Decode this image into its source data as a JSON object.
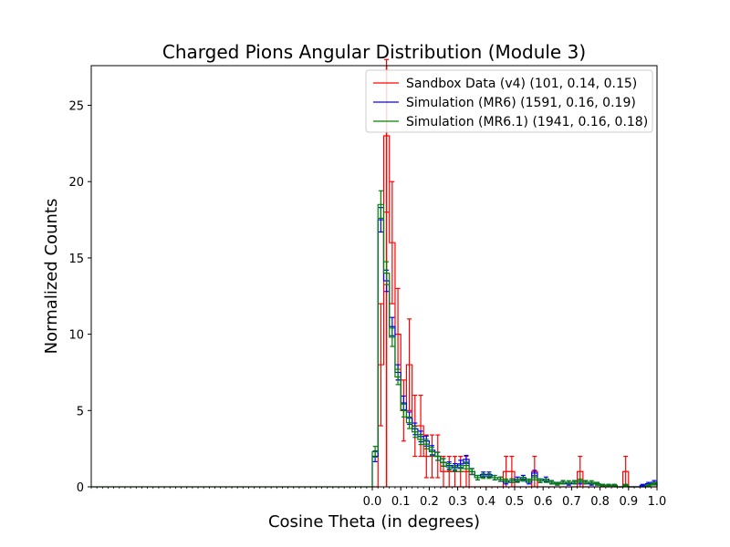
{
  "chart_data": {
    "type": "histogram-step",
    "title": "Charged Pions Angular Distribution (Module 3)",
    "xlabel": "Cosine Theta (in degrees)",
    "ylabel": "Normalized Counts",
    "xlim": [
      -1.0,
      1.0
    ],
    "ylim": [
      0,
      27.6
    ],
    "xticks": [
      0.0,
      0.1,
      0.2,
      0.3,
      0.4,
      0.5,
      0.6,
      0.7,
      0.8,
      0.9,
      1.0
    ],
    "xtick_labels": [
      "0.0",
      "0.1",
      "0.2",
      "0.3",
      "0.4",
      "0.5",
      "0.6",
      "0.7",
      "0.8",
      "0.9",
      "1.0"
    ],
    "yticks": [
      0,
      5,
      10,
      15,
      20,
      25
    ],
    "ytick_labels": [
      "0",
      "5",
      "10",
      "15",
      "20",
      "25"
    ],
    "minor_xtick_step": 0.02,
    "vline_x": 0.05,
    "vline_color": "#ff0000",
    "legend_position": "upper-right",
    "bin_width": 0.02,
    "series": [
      {
        "name": "Sandbox Data (v4) (101, 0.14, 0.15)",
        "color": "#ff0000",
        "x": [
          0.01,
          0.03,
          0.05,
          0.07,
          0.09,
          0.11,
          0.13,
          0.15,
          0.17,
          0.19,
          0.21,
          0.23,
          0.25,
          0.27,
          0.29,
          0.31,
          0.33,
          0.35,
          0.37,
          0.39,
          0.41,
          0.43,
          0.45,
          0.47,
          0.49,
          0.51,
          0.53,
          0.55,
          0.57,
          0.59,
          0.61,
          0.63,
          0.65,
          0.67,
          0.69,
          0.71,
          0.73,
          0.75,
          0.77,
          0.79,
          0.81,
          0.83,
          0.85,
          0.87,
          0.89,
          0.91,
          0.93,
          0.95,
          0.97,
          0.99
        ],
        "values": [
          0,
          8,
          23,
          16,
          10,
          5,
          8,
          4,
          4,
          2,
          2,
          2,
          1,
          1,
          1,
          1,
          1,
          0,
          0,
          0,
          0,
          0,
          0,
          1,
          1,
          0,
          0,
          0,
          1,
          0,
          0,
          0,
          0,
          0,
          0,
          0,
          1,
          0,
          0,
          0,
          0,
          0,
          0,
          0,
          1,
          0,
          0,
          0,
          0,
          0
        ],
        "errors": [
          0,
          4,
          5,
          4,
          3,
          2,
          3,
          2,
          2,
          1.4,
          1.4,
          1.4,
          1,
          1,
          1,
          1,
          1,
          0,
          0,
          0,
          0,
          0,
          0,
          1,
          1,
          0,
          0,
          0,
          1,
          0,
          0,
          0,
          0,
          0,
          0,
          0,
          1,
          0,
          0,
          0,
          0,
          0,
          0,
          0,
          1,
          0,
          0,
          0,
          0,
          0
        ]
      },
      {
        "name": "Simulation (MR6) (1591, 0.16, 0.19)",
        "color": "#0000ff",
        "x": [
          0.01,
          0.03,
          0.05,
          0.07,
          0.09,
          0.11,
          0.13,
          0.15,
          0.17,
          0.19,
          0.21,
          0.23,
          0.25,
          0.27,
          0.29,
          0.31,
          0.33,
          0.35,
          0.37,
          0.39,
          0.41,
          0.43,
          0.45,
          0.47,
          0.49,
          0.51,
          0.53,
          0.55,
          0.57,
          0.59,
          0.61,
          0.63,
          0.65,
          0.67,
          0.69,
          0.71,
          0.73,
          0.75,
          0.77,
          0.79,
          0.81,
          0.83,
          0.85,
          0.87,
          0.89,
          0.91,
          0.93,
          0.95,
          0.97,
          0.99
        ],
        "values": [
          2.0,
          17.5,
          13.5,
          10.5,
          7.5,
          5.5,
          4.5,
          3.8,
          3.3,
          3.0,
          2.4,
          2.0,
          1.6,
          1.4,
          1.3,
          1.5,
          1.8,
          1.0,
          0.6,
          0.8,
          0.8,
          0.6,
          0.5,
          0.3,
          0.4,
          0.5,
          0.6,
          0.3,
          0.9,
          0.4,
          0.5,
          0.3,
          0.2,
          0.3,
          0.2,
          0.3,
          0.3,
          0.3,
          0.2,
          0.2,
          0.1,
          0.1,
          0.1,
          0.0,
          0.1,
          0.0,
          0.0,
          0.1,
          0.2,
          0.3
        ],
        "errors": [
          0.35,
          0.8,
          0.7,
          0.6,
          0.5,
          0.45,
          0.4,
          0.38,
          0.35,
          0.33,
          0.3,
          0.27,
          0.25,
          0.23,
          0.22,
          0.24,
          0.26,
          0.2,
          0.15,
          0.17,
          0.17,
          0.15,
          0.14,
          0.11,
          0.12,
          0.14,
          0.15,
          0.11,
          0.18,
          0.12,
          0.14,
          0.11,
          0.09,
          0.11,
          0.09,
          0.11,
          0.11,
          0.11,
          0.09,
          0.09,
          0.06,
          0.06,
          0.06,
          0.0,
          0.06,
          0.0,
          0.0,
          0.06,
          0.09,
          0.11
        ]
      },
      {
        "name": "Simulation (MR6.1) (1941, 0.16, 0.18)",
        "color": "#008000",
        "x": [
          0.01,
          0.03,
          0.05,
          0.07,
          0.09,
          0.11,
          0.13,
          0.15,
          0.17,
          0.19,
          0.21,
          0.23,
          0.25,
          0.27,
          0.29,
          0.31,
          0.33,
          0.35,
          0.37,
          0.39,
          0.41,
          0.43,
          0.45,
          0.47,
          0.49,
          0.51,
          0.53,
          0.55,
          0.57,
          0.59,
          0.61,
          0.63,
          0.65,
          0.67,
          0.69,
          0.71,
          0.73,
          0.75,
          0.77,
          0.79,
          0.81,
          0.83,
          0.85,
          0.87,
          0.89,
          0.91,
          0.93,
          0.95,
          0.97,
          0.99
        ],
        "values": [
          2.3,
          18.5,
          14.0,
          9.8,
          7.2,
          5.0,
          4.2,
          3.6,
          3.1,
          2.8,
          2.3,
          2.0,
          1.6,
          1.3,
          1.2,
          1.2,
          1.4,
          1.0,
          0.6,
          0.7,
          0.7,
          0.6,
          0.5,
          0.4,
          0.4,
          0.4,
          0.5,
          0.4,
          0.6,
          0.4,
          0.4,
          0.3,
          0.2,
          0.3,
          0.3,
          0.3,
          0.4,
          0.3,
          0.3,
          0.2,
          0.1,
          0.1,
          0.1,
          0.0,
          0.1,
          0.0,
          0.0,
          0.0,
          0.1,
          0.2
        ],
        "errors": [
          0.35,
          0.9,
          0.75,
          0.6,
          0.5,
          0.42,
          0.38,
          0.36,
          0.33,
          0.31,
          0.28,
          0.26,
          0.24,
          0.22,
          0.2,
          0.2,
          0.22,
          0.18,
          0.14,
          0.15,
          0.15,
          0.14,
          0.13,
          0.11,
          0.11,
          0.11,
          0.13,
          0.11,
          0.14,
          0.11,
          0.11,
          0.1,
          0.08,
          0.1,
          0.1,
          0.1,
          0.11,
          0.1,
          0.1,
          0.08,
          0.06,
          0.06,
          0.06,
          0.0,
          0.06,
          0.0,
          0.0,
          0.0,
          0.06,
          0.08
        ]
      }
    ]
  }
}
